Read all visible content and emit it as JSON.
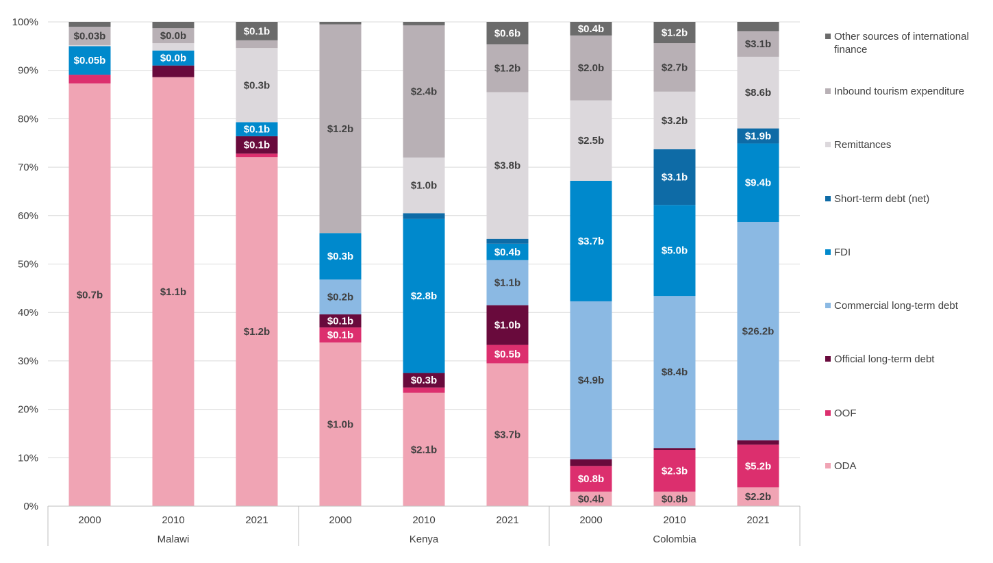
{
  "chart_data": {
    "type": "bar",
    "stacked": true,
    "normalized": true,
    "y_axis": {
      "ylim": [
        0,
        100
      ],
      "ticks": [
        "0%",
        "10%",
        "20%",
        "30%",
        "40%",
        "50%",
        "60%",
        "70%",
        "80%",
        "90%",
        "100%"
      ],
      "grid": true
    },
    "legend_position": "right",
    "series": [
      {
        "name": "ODA",
        "color": "#f0a4b4"
      },
      {
        "name": "OOF",
        "color": "#dc2f6e"
      },
      {
        "name": "Official long-term debt",
        "color": "#690a3c"
      },
      {
        "name": "Commercial long-term debt",
        "color": "#8bb9e3"
      },
      {
        "name": "FDI",
        "color": "#0089cc"
      },
      {
        "name": "Short-term debt (net)",
        "color": "#0e6ba6"
      },
      {
        "name": "Remittances",
        "color": "#dcd8dc"
      },
      {
        "name": "Inbound tourism expenditure",
        "color": "#b8b0b5"
      },
      {
        "name": "Other sources of international finance",
        "color": "#6b6b6b"
      }
    ],
    "legend_order": [
      "Other sources of international finance",
      "Inbound tourism expenditure",
      "Remittances",
      "Short-term debt (net)",
      "FDI",
      "Commercial long-term debt",
      "Official long-term debt",
      "OOF",
      "ODA"
    ],
    "groups": [
      {
        "name": "Malawi",
        "bars": [
          {
            "year": "2000",
            "segments": [
              {
                "series": "ODA",
                "pct": 87.3,
                "label": "$0.7b"
              },
              {
                "series": "OOF",
                "pct": 1.8,
                "label": ""
              },
              {
                "series": "FDI",
                "pct": 5.9,
                "label": "$0.05b"
              },
              {
                "series": "Remittances",
                "pct": 0.2,
                "label": ""
              },
              {
                "series": "Inbound tourism expenditure",
                "pct": 3.8,
                "label": "$0.03b"
              },
              {
                "series": "Other sources of international finance",
                "pct": 1.0,
                "label": ""
              }
            ]
          },
          {
            "year": "2010",
            "segments": [
              {
                "series": "ODA",
                "pct": 88.6,
                "label": "$1.1b"
              },
              {
                "series": "Official long-term debt",
                "pct": 2.4,
                "label": ""
              },
              {
                "series": "FDI",
                "pct": 3.1,
                "label": "$0.0b"
              },
              {
                "series": "Remittances",
                "pct": 1.5,
                "label": ""
              },
              {
                "series": "Inbound tourism expenditure",
                "pct": 3.1,
                "label": "$0.0b"
              },
              {
                "series": "Other sources of international finance",
                "pct": 1.3,
                "label": ""
              }
            ]
          },
          {
            "year": "2021",
            "segments": [
              {
                "series": "ODA",
                "pct": 72.1,
                "label": "$1.2b"
              },
              {
                "series": "OOF",
                "pct": 0.7,
                "label": ""
              },
              {
                "series": "Official long-term debt",
                "pct": 3.6,
                "label": "$0.1b"
              },
              {
                "series": "FDI",
                "pct": 2.9,
                "label": "$0.1b"
              },
              {
                "series": "Remittances",
                "pct": 15.3,
                "label": "$0.3b"
              },
              {
                "series": "Inbound tourism expenditure",
                "pct": 1.6,
                "label": ""
              },
              {
                "series": "Other sources of international finance",
                "pct": 3.8,
                "label": "$0.1b"
              }
            ]
          }
        ]
      },
      {
        "name": "Kenya",
        "bars": [
          {
            "year": "2000",
            "segments": [
              {
                "series": "ODA",
                "pct": 33.8,
                "label": "$1.0b"
              },
              {
                "series": "OOF",
                "pct": 3.1,
                "label": "$0.1b"
              },
              {
                "series": "Official long-term debt",
                "pct": 2.7,
                "label": "$0.1b"
              },
              {
                "series": "Commercial long-term debt",
                "pct": 7.2,
                "label": "$0.2b"
              },
              {
                "series": "FDI",
                "pct": 9.6,
                "label": "$0.3b"
              },
              {
                "series": "Inbound tourism expenditure",
                "pct": 43.1,
                "label": "$1.2b"
              },
              {
                "series": "Other sources of international finance",
                "pct": 0.5,
                "label": ""
              }
            ]
          },
          {
            "year": "2010",
            "segments": [
              {
                "series": "ODA",
                "pct": 23.4,
                "label": "$2.1b"
              },
              {
                "series": "OOF",
                "pct": 1.1,
                "label": ""
              },
              {
                "series": "Official long-term debt",
                "pct": 3.0,
                "label": "$0.3b"
              },
              {
                "series": "FDI",
                "pct": 31.8,
                "label": "$2.8b"
              },
              {
                "series": "Short-term debt (net)",
                "pct": 1.2,
                "label": ""
              },
              {
                "series": "Remittances",
                "pct": 11.5,
                "label": "$1.0b"
              },
              {
                "series": "Inbound tourism expenditure",
                "pct": 27.3,
                "label": "$2.4b"
              },
              {
                "series": "Other sources of international finance",
                "pct": 0.7,
                "label": ""
              }
            ]
          },
          {
            "year": "2021",
            "segments": [
              {
                "series": "ODA",
                "pct": 29.5,
                "label": "$3.7b"
              },
              {
                "series": "OOF",
                "pct": 3.8,
                "label": "$0.5b"
              },
              {
                "series": "Official long-term debt",
                "pct": 8.2,
                "label": "$1.0b"
              },
              {
                "series": "Commercial long-term debt",
                "pct": 9.3,
                "label": "$1.1b"
              },
              {
                "series": "FDI",
                "pct": 3.4,
                "label": "$0.4b"
              },
              {
                "series": "Short-term debt (net)",
                "pct": 1.0,
                "label": ""
              },
              {
                "series": "Remittances",
                "pct": 30.3,
                "label": "$3.8b"
              },
              {
                "series": "Inbound tourism expenditure",
                "pct": 9.9,
                "label": "$1.2b"
              },
              {
                "series": "Other sources of international finance",
                "pct": 4.6,
                "label": "$0.6b"
              }
            ]
          }
        ]
      },
      {
        "name": "Colombia",
        "bars": [
          {
            "year": "2000",
            "segments": [
              {
                "series": "ODA",
                "pct": 3.0,
                "label": "$0.4b"
              },
              {
                "series": "OOF",
                "pct": 5.3,
                "label": "$0.8b"
              },
              {
                "series": "Official long-term debt",
                "pct": 1.4,
                "label": ""
              },
              {
                "series": "Commercial long-term debt",
                "pct": 32.6,
                "label": "$4.9b"
              },
              {
                "series": "FDI",
                "pct": 24.9,
                "label": "$3.7b"
              },
              {
                "series": "Remittances",
                "pct": 16.6,
                "label": "$2.5b"
              },
              {
                "series": "Inbound tourism expenditure",
                "pct": 13.4,
                "label": "$2.0b"
              },
              {
                "series": "Other sources of international finance",
                "pct": 2.8,
                "label": "$0.4b"
              }
            ]
          },
          {
            "year": "2010",
            "segments": [
              {
                "series": "ODA",
                "pct": 3.0,
                "label": "$0.8b"
              },
              {
                "series": "OOF",
                "pct": 8.6,
                "label": "$2.3b"
              },
              {
                "series": "Official long-term debt",
                "pct": 0.4,
                "label": ""
              },
              {
                "series": "Commercial long-term debt",
                "pct": 31.4,
                "label": "$8.4b"
              },
              {
                "series": "FDI",
                "pct": 18.8,
                "label": "$5.0b"
              },
              {
                "series": "Short-term debt (net)",
                "pct": 11.5,
                "label": "$3.1b"
              },
              {
                "series": "Remittances",
                "pct": 11.9,
                "label": "$3.2b"
              },
              {
                "series": "Inbound tourism expenditure",
                "pct": 10.0,
                "label": "$2.7b"
              },
              {
                "series": "Other sources of international finance",
                "pct": 4.4,
                "label": "$1.2b"
              }
            ]
          },
          {
            "year": "2021",
            "segments": [
              {
                "series": "ODA",
                "pct": 3.9,
                "label": "$2.2b"
              },
              {
                "series": "OOF",
                "pct": 8.8,
                "label": "$5.2b"
              },
              {
                "series": "Official long-term debt",
                "pct": 0.9,
                "label": ""
              },
              {
                "series": "Commercial long-term debt",
                "pct": 45.1,
                "label": "$26.2b"
              },
              {
                "series": "FDI",
                "pct": 16.2,
                "label": "$9.4b"
              },
              {
                "series": "Short-term debt (net)",
                "pct": 3.1,
                "label": "$1.9b"
              },
              {
                "series": "Remittances",
                "pct": 14.8,
                "label": "$8.6b"
              },
              {
                "series": "Inbound tourism expenditure",
                "pct": 5.3,
                "label": "$3.1b"
              },
              {
                "series": "Other sources of international finance",
                "pct": 1.9,
                "label": ""
              }
            ]
          }
        ]
      }
    ]
  }
}
